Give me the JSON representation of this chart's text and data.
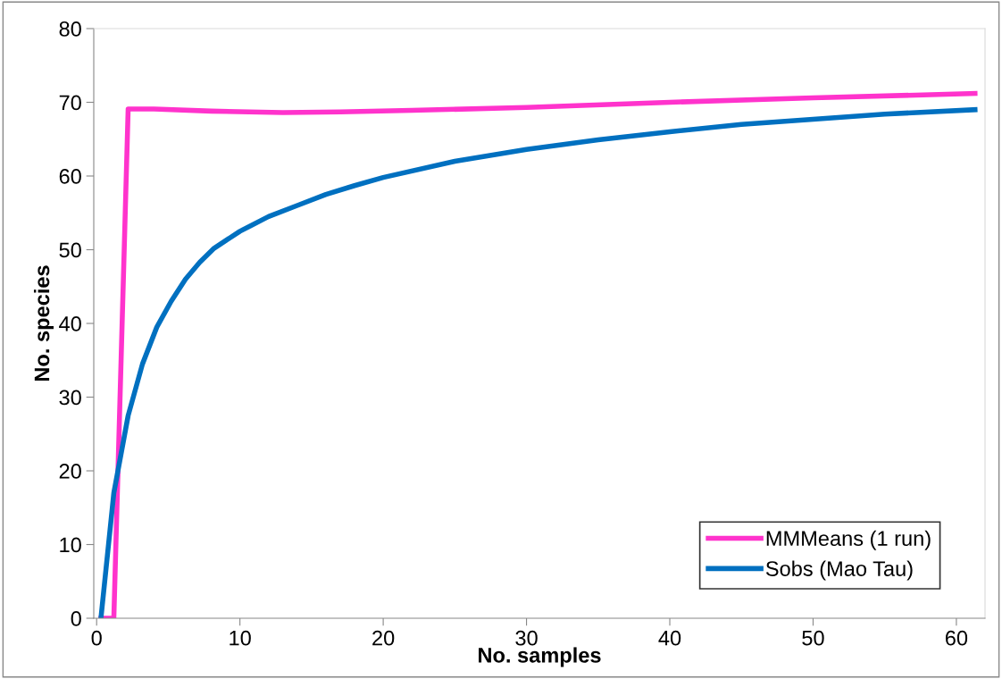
{
  "chart_data": {
    "type": "line",
    "xlabel": "No. samples",
    "ylabel": "No. species",
    "xlim": [
      -0.2,
      62
    ],
    "ylim": [
      0,
      80
    ],
    "xticks": [
      0,
      10,
      20,
      30,
      40,
      50,
      60
    ],
    "yticks": [
      0,
      10,
      20,
      30,
      40,
      50,
      60,
      70,
      80
    ],
    "grid": false,
    "legend": "bottom right",
    "marker": "none",
    "line_style": "solid",
    "series": [
      {
        "name": "MMMeans (1 run)",
        "color": "#ff33cc",
        "x": [
          0.3,
          1.2,
          2.2,
          4,
          8,
          13,
          17,
          22,
          30,
          40,
          50,
          61.3
        ],
        "values": [
          0,
          0,
          69.1,
          69.1,
          68.8,
          68.6,
          68.7,
          68.9,
          69.3,
          70,
          70.6,
          71.2
        ]
      },
      {
        "name": "Sobs (Mao Tau)",
        "color": "#0070c0",
        "x": [
          0.3,
          1.2,
          2.2,
          3.2,
          4.2,
          5.2,
          6.2,
          7.2,
          8.2,
          10,
          12,
          14,
          16,
          18,
          20,
          25,
          30,
          35,
          40,
          45,
          50,
          55,
          61.3
        ],
        "values": [
          0,
          17,
          27.5,
          34.5,
          39.5,
          43,
          46,
          48.3,
          50.2,
          52.5,
          54.5,
          56,
          57.5,
          58.7,
          59.8,
          62,
          63.6,
          64.9,
          66,
          67,
          67.7,
          68.4,
          69
        ]
      }
    ]
  }
}
